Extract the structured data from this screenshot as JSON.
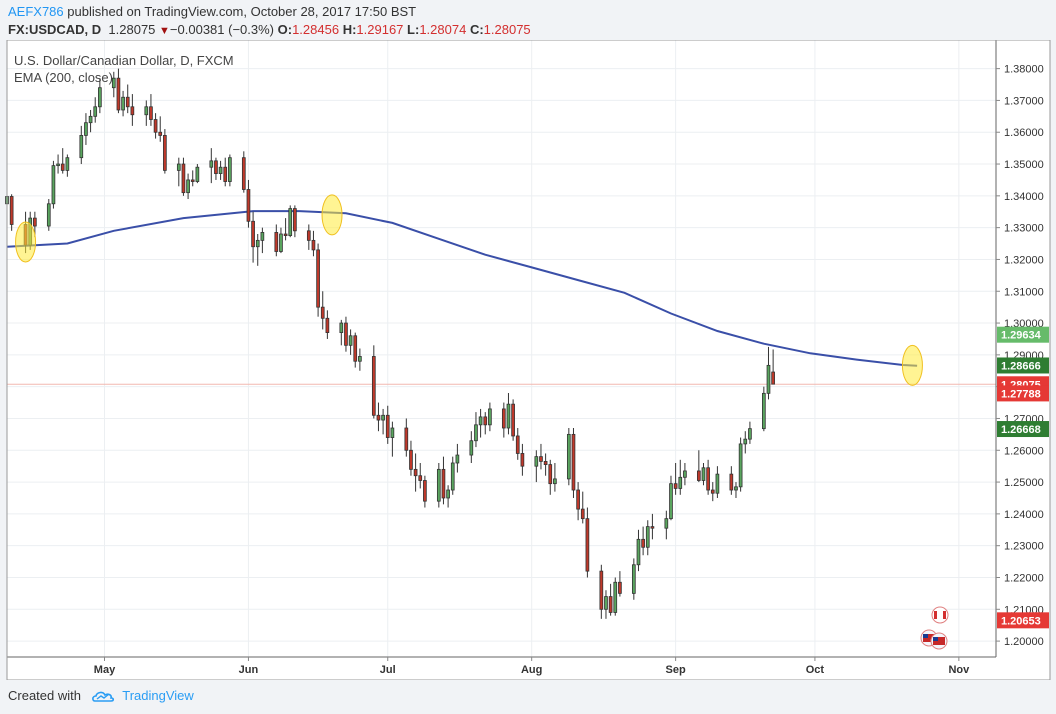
{
  "header": {
    "user": "AEFX786",
    "published_text": "published on TradingView.com, October 28, 2017 17:50 BST",
    "symbol": "FX:USDCAD, D",
    "last": "1.28075",
    "change": "−0.00381 (−0.3%)",
    "o_label": "O:",
    "o_value": "1.28456",
    "h_label": "H:",
    "h_value": "1.29167",
    "l_label": "L:",
    "l_value": "1.28074",
    "c_label": "C:",
    "c_value": "1.28075",
    "down_arrow": "▼"
  },
  "legend": {
    "title": "U.S. Dollar/Canadian Dollar, D, FXCM",
    "indicator": "EMA (200, close)"
  },
  "footer": {
    "created_with": "Created with",
    "brand": "TradingView",
    "icon": "tradingview-cloud-icon"
  },
  "colors": {
    "up": "#5aa55f",
    "down": "#c0392b",
    "ema": "#3a4fa8",
    "axis_text": "#333333",
    "bg": "#ffffff",
    "grid": "#eceff2"
  },
  "chart_data": {
    "type": "candlestick",
    "title": "U.S. Dollar/Canadian Dollar, D, FXCM",
    "ylim": [
      1.195,
      1.389
    ],
    "y_ticks": [
      "1.38000",
      "1.37000",
      "1.36000",
      "1.35000",
      "1.34000",
      "1.33000",
      "1.32000",
      "1.31000",
      "1.30000",
      "1.29000",
      "1.28000",
      "1.27000",
      "1.26000",
      "1.25000",
      "1.24000",
      "1.23000",
      "1.22000",
      "1.21000",
      "1.20000"
    ],
    "x_ticks": [
      {
        "label": "May",
        "day": 18
      },
      {
        "label": "Jun",
        "day": 49
      },
      {
        "label": "Jul",
        "day": 79
      },
      {
        "label": "Aug",
        "day": 110
      },
      {
        "label": "Sep",
        "day": 141
      },
      {
        "label": "Oct",
        "day": 171
      },
      {
        "label": "Nov",
        "day": 202
      }
    ],
    "day_range": [
      -3,
      210
    ],
    "price_labels": [
      {
        "text": "1.29634",
        "value": 1.29634,
        "color": "#66bb6a"
      },
      {
        "text": "1.28666",
        "value": 1.28666,
        "color": "#2e7d32"
      },
      {
        "text": "1.28075",
        "value": 1.28075,
        "color": "#e53935"
      },
      {
        "text": "1.27788",
        "value": 1.27788,
        "color": "#e53935"
      },
      {
        "text": "1.26668",
        "value": 1.26668,
        "color": "#2e7d32"
      },
      {
        "text": "1.20653",
        "value": 1.20653,
        "color": "#e53935"
      }
    ],
    "last_price": 1.28075,
    "ema": [
      [
        -3,
        1.324
      ],
      [
        10,
        1.325
      ],
      [
        20,
        1.329
      ],
      [
        35,
        1.333
      ],
      [
        50,
        1.3352
      ],
      [
        60,
        1.3352
      ],
      [
        70,
        1.3345
      ],
      [
        80,
        1.3315
      ],
      [
        90,
        1.3265
      ],
      [
        100,
        1.3215
      ],
      [
        110,
        1.3175
      ],
      [
        120,
        1.3135
      ],
      [
        130,
        1.3095
      ],
      [
        140,
        1.303
      ],
      [
        150,
        1.2975
      ],
      [
        160,
        1.2935
      ],
      [
        170,
        1.2905
      ],
      [
        180,
        1.2885
      ],
      [
        190,
        1.2868
      ],
      [
        193,
        1.2866
      ]
    ],
    "highlights": [
      {
        "day": 1,
        "price": 1.3255
      },
      {
        "day": 67,
        "price": 1.334
      },
      {
        "day": 192,
        "price": 1.2867
      }
    ],
    "candles": [
      [
        -3,
        1.3375,
        1.342,
        1.334,
        1.3398
      ],
      [
        -2,
        1.3398,
        1.3405,
        1.329,
        1.331
      ],
      [
        1,
        1.331,
        1.335,
        1.322,
        1.3245
      ],
      [
        2,
        1.3245,
        1.335,
        1.323,
        1.333
      ],
      [
        3,
        1.333,
        1.335,
        1.327,
        1.3305
      ],
      [
        6,
        1.3305,
        1.339,
        1.329,
        1.3375
      ],
      [
        7,
        1.3375,
        1.351,
        1.336,
        1.3495
      ],
      [
        8,
        1.3495,
        1.353,
        1.347,
        1.35
      ],
      [
        9,
        1.35,
        1.355,
        1.347,
        1.348
      ],
      [
        10,
        1.348,
        1.353,
        1.346,
        1.352
      ],
      [
        13,
        1.352,
        1.362,
        1.35,
        1.359
      ],
      [
        14,
        1.359,
        1.366,
        1.356,
        1.363
      ],
      [
        15,
        1.363,
        1.367,
        1.36,
        1.365
      ],
      [
        16,
        1.365,
        1.371,
        1.363,
        1.368
      ],
      [
        17,
        1.368,
        1.377,
        1.366,
        1.374
      ],
      [
        20,
        1.374,
        1.379,
        1.371,
        1.377
      ],
      [
        21,
        1.377,
        1.38,
        1.366,
        1.367
      ],
      [
        22,
        1.367,
        1.373,
        1.365,
        1.371
      ],
      [
        23,
        1.371,
        1.375,
        1.366,
        1.368
      ],
      [
        24,
        1.368,
        1.372,
        1.362,
        1.3655
      ],
      [
        27,
        1.3655,
        1.37,
        1.362,
        1.368
      ],
      [
        28,
        1.368,
        1.372,
        1.362,
        1.364
      ],
      [
        29,
        1.364,
        1.366,
        1.358,
        1.36
      ],
      [
        30,
        1.36,
        1.365,
        1.357,
        1.359
      ],
      [
        31,
        1.359,
        1.361,
        1.347,
        1.348
      ],
      [
        34,
        1.348,
        1.352,
        1.343,
        1.35
      ],
      [
        35,
        1.35,
        1.352,
        1.34,
        1.341
      ],
      [
        36,
        1.341,
        1.347,
        1.339,
        1.345
      ],
      [
        37,
        1.345,
        1.348,
        1.343,
        1.3445
      ],
      [
        38,
        1.3445,
        1.35,
        1.344,
        1.349
      ],
      [
        41,
        1.349,
        1.355,
        1.344,
        1.351
      ],
      [
        42,
        1.351,
        1.352,
        1.345,
        1.347
      ],
      [
        43,
        1.347,
        1.351,
        1.345,
        1.349
      ],
      [
        44,
        1.349,
        1.352,
        1.343,
        1.3445
      ],
      [
        45,
        1.3445,
        1.353,
        1.343,
        1.352
      ],
      [
        48,
        1.352,
        1.354,
        1.341,
        1.342
      ],
      [
        49,
        1.342,
        1.345,
        1.33,
        1.332
      ],
      [
        50,
        1.332,
        1.335,
        1.319,
        1.324
      ],
      [
        51,
        1.324,
        1.328,
        1.318,
        1.326
      ],
      [
        52,
        1.326,
        1.33,
        1.322,
        1.3285
      ],
      [
        55,
        1.3285,
        1.331,
        1.321,
        1.3225
      ],
      [
        56,
        1.3225,
        1.33,
        1.322,
        1.328
      ],
      [
        57,
        1.328,
        1.333,
        1.326,
        1.3275
      ],
      [
        58,
        1.3275,
        1.337,
        1.327,
        1.336
      ],
      [
        59,
        1.336,
        1.337,
        1.327,
        1.329
      ],
      [
        62,
        1.329,
        1.331,
        1.323,
        1.326
      ],
      [
        63,
        1.326,
        1.329,
        1.321,
        1.323
      ],
      [
        64,
        1.323,
        1.325,
        1.302,
        1.305
      ],
      [
        65,
        1.305,
        1.31,
        1.298,
        1.3015
      ],
      [
        66,
        1.3015,
        1.304,
        1.295,
        1.297
      ],
      [
        69,
        1.297,
        1.301,
        1.293,
        1.3
      ],
      [
        70,
        1.3,
        1.302,
        1.291,
        1.293
      ],
      [
        71,
        1.293,
        1.298,
        1.29,
        1.296
      ],
      [
        72,
        1.296,
        1.297,
        1.286,
        1.288
      ],
      [
        73,
        1.288,
        1.292,
        1.285,
        1.2895
      ],
      [
        76,
        1.2895,
        1.293,
        1.27,
        1.271
      ],
      [
        77,
        1.271,
        1.275,
        1.266,
        1.2695
      ],
      [
        78,
        1.2695,
        1.273,
        1.265,
        1.271
      ],
      [
        79,
        1.271,
        1.274,
        1.262,
        1.264
      ],
      [
        80,
        1.264,
        1.269,
        1.258,
        1.267
      ],
      [
        83,
        1.267,
        1.27,
        1.258,
        1.26
      ],
      [
        84,
        1.26,
        1.263,
        1.252,
        1.254
      ],
      [
        85,
        1.254,
        1.259,
        1.247,
        1.252
      ],
      [
        86,
        1.252,
        1.256,
        1.248,
        1.2505
      ],
      [
        87,
        1.2505,
        1.252,
        1.242,
        1.244
      ],
      [
        90,
        1.244,
        1.256,
        1.242,
        1.254
      ],
      [
        91,
        1.254,
        1.258,
        1.243,
        1.245
      ],
      [
        92,
        1.245,
        1.249,
        1.242,
        1.2475
      ],
      [
        93,
        1.2475,
        1.258,
        1.246,
        1.256
      ],
      [
        94,
        1.256,
        1.262,
        1.253,
        1.2585
      ],
      [
        97,
        1.2585,
        1.266,
        1.256,
        1.263
      ],
      [
        98,
        1.263,
        1.272,
        1.261,
        1.268
      ],
      [
        99,
        1.268,
        1.273,
        1.264,
        1.2705
      ],
      [
        100,
        1.2705,
        1.272,
        1.265,
        1.268
      ],
      [
        101,
        1.268,
        1.275,
        1.266,
        1.273
      ],
      [
        104,
        1.273,
        1.275,
        1.264,
        1.267
      ],
      [
        105,
        1.267,
        1.278,
        1.265,
        1.2745
      ],
      [
        106,
        1.2745,
        1.276,
        1.263,
        1.2645
      ],
      [
        107,
        1.2645,
        1.267,
        1.257,
        1.259
      ],
      [
        108,
        1.259,
        1.262,
        1.252,
        1.255
      ],
      [
        111,
        1.255,
        1.26,
        1.25,
        1.258
      ],
      [
        112,
        1.258,
        1.262,
        1.254,
        1.2565
      ],
      [
        113,
        1.2565,
        1.259,
        1.252,
        1.2555
      ],
      [
        114,
        1.2555,
        1.257,
        1.246,
        1.2495
      ],
      [
        115,
        1.2495,
        1.256,
        1.247,
        1.251
      ],
      [
        118,
        1.251,
        1.267,
        1.249,
        1.265
      ],
      [
        119,
        1.265,
        1.267,
        1.245,
        1.2475
      ],
      [
        120,
        1.2475,
        1.25,
        1.238,
        1.2415
      ],
      [
        121,
        1.2415,
        1.247,
        1.237,
        1.2385
      ],
      [
        122,
        1.2385,
        1.242,
        1.22,
        1.222
      ],
      [
        125,
        1.222,
        1.224,
        1.207,
        1.21
      ],
      [
        126,
        1.21,
        1.216,
        1.207,
        1.214
      ],
      [
        127,
        1.214,
        1.218,
        1.208,
        1.209
      ],
      [
        128,
        1.209,
        1.22,
        1.208,
        1.2185
      ],
      [
        129,
        1.2185,
        1.222,
        1.214,
        1.215
      ],
      [
        132,
        1.215,
        1.226,
        1.213,
        1.224
      ],
      [
        133,
        1.224,
        1.235,
        1.222,
        1.232
      ],
      [
        134,
        1.232,
        1.236,
        1.227,
        1.2295
      ],
      [
        135,
        1.2295,
        1.238,
        1.227,
        1.236
      ],
      [
        136,
        1.236,
        1.24,
        1.232,
        1.2355
      ],
      [
        139,
        1.2355,
        1.241,
        1.232,
        1.2385
      ],
      [
        140,
        1.2385,
        1.252,
        1.238,
        1.2495
      ],
      [
        141,
        1.2495,
        1.256,
        1.246,
        1.248
      ],
      [
        142,
        1.248,
        1.257,
        1.246,
        1.2515
      ],
      [
        143,
        1.2515,
        1.256,
        1.249,
        1.2535
      ],
      [
        146,
        1.2535,
        1.26,
        1.25,
        1.2505
      ],
      [
        147,
        1.2505,
        1.256,
        1.249,
        1.2545
      ],
      [
        148,
        1.2545,
        1.257,
        1.246,
        1.2475
      ],
      [
        149,
        1.2475,
        1.25,
        1.244,
        1.2465
      ],
      [
        150,
        1.2465,
        1.255,
        1.245,
        1.2525
      ],
      [
        153,
        1.2525,
        1.255,
        1.246,
        1.2475
      ],
      [
        154,
        1.2475,
        1.25,
        1.245,
        1.2485
      ],
      [
        155,
        1.2485,
        1.264,
        1.247,
        1.262
      ],
      [
        156,
        1.262,
        1.266,
        1.259,
        1.2635
      ],
      [
        157,
        1.2635,
        1.269,
        1.262,
        1.2668
      ],
      [
        160,
        1.2668,
        1.28,
        1.266,
        1.2779
      ],
      [
        161,
        1.2779,
        1.2925,
        1.276,
        1.2867
      ],
      [
        162,
        1.2846,
        1.2917,
        1.2807,
        1.2808
      ]
    ]
  }
}
